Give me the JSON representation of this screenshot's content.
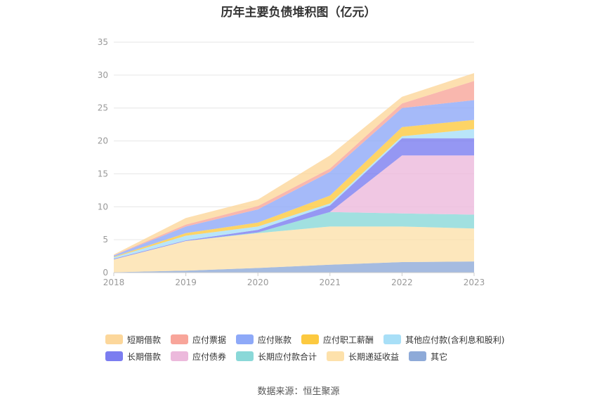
{
  "chart_data": {
    "type": "area",
    "stacked": true,
    "title": "历年主要负债堆积图（亿元）",
    "source": "数据来源：恒生聚源",
    "categories": [
      "2018",
      "2019",
      "2020",
      "2021",
      "2022",
      "2023"
    ],
    "ylim": [
      0,
      35
    ],
    "yticks": [
      "0",
      "5",
      "10",
      "15",
      "20",
      "25",
      "30",
      "35"
    ],
    "grid": true,
    "legend_position": "bottom",
    "series": [
      {
        "name": "其它",
        "color": "#8eaad8",
        "values": [
          0.05,
          0.3,
          0.7,
          1.2,
          1.6,
          1.7
        ]
      },
      {
        "name": "长期递延收益",
        "color": "#fde1ab",
        "values": [
          1.95,
          4.5,
          5.3,
          5.8,
          5.4,
          5.0
        ]
      },
      {
        "name": "长期应付款合计",
        "color": "#8ad8d8",
        "values": [
          0,
          0,
          0.1,
          2.2,
          2.0,
          2.1
        ]
      },
      {
        "name": "应付债券",
        "color": "#ecb9dc",
        "values": [
          0,
          0,
          0,
          0,
          8.8,
          9.0
        ]
      },
      {
        "name": "长期借款",
        "color": "#7b7df0",
        "values": [
          0.1,
          0.1,
          0.4,
          1.0,
          2.6,
          2.6
        ]
      },
      {
        "name": "其他应付款(含利息和股利)",
        "color": "#a8dff7",
        "values": [
          0.2,
          0.7,
          0.5,
          0.3,
          0.3,
          1.4
        ]
      },
      {
        "name": "应付职工薪酬",
        "color": "#fcc940",
        "values": [
          0.1,
          0.4,
          0.6,
          1.2,
          1.4,
          1.4
        ]
      },
      {
        "name": "应付账款",
        "color": "#8ea9f8",
        "values": [
          0.2,
          1.0,
          2.0,
          3.6,
          2.9,
          3.0
        ]
      },
      {
        "name": "应付票据",
        "color": "#f8a59a",
        "values": [
          0.05,
          0.3,
          0.5,
          0.5,
          0.7,
          2.9
        ]
      },
      {
        "name": "短期借款",
        "color": "#fcd79b",
        "values": [
          0.1,
          1.0,
          1.0,
          2.0,
          1.0,
          1.2
        ]
      }
    ],
    "legend_order": [
      "短期借款",
      "应付票据",
      "应付账款",
      "应付职工薪酬",
      "其他应付款(含利息和股利)",
      "长期借款",
      "应付债券",
      "长期应付款合计",
      "长期递延收益",
      "其它"
    ]
  }
}
